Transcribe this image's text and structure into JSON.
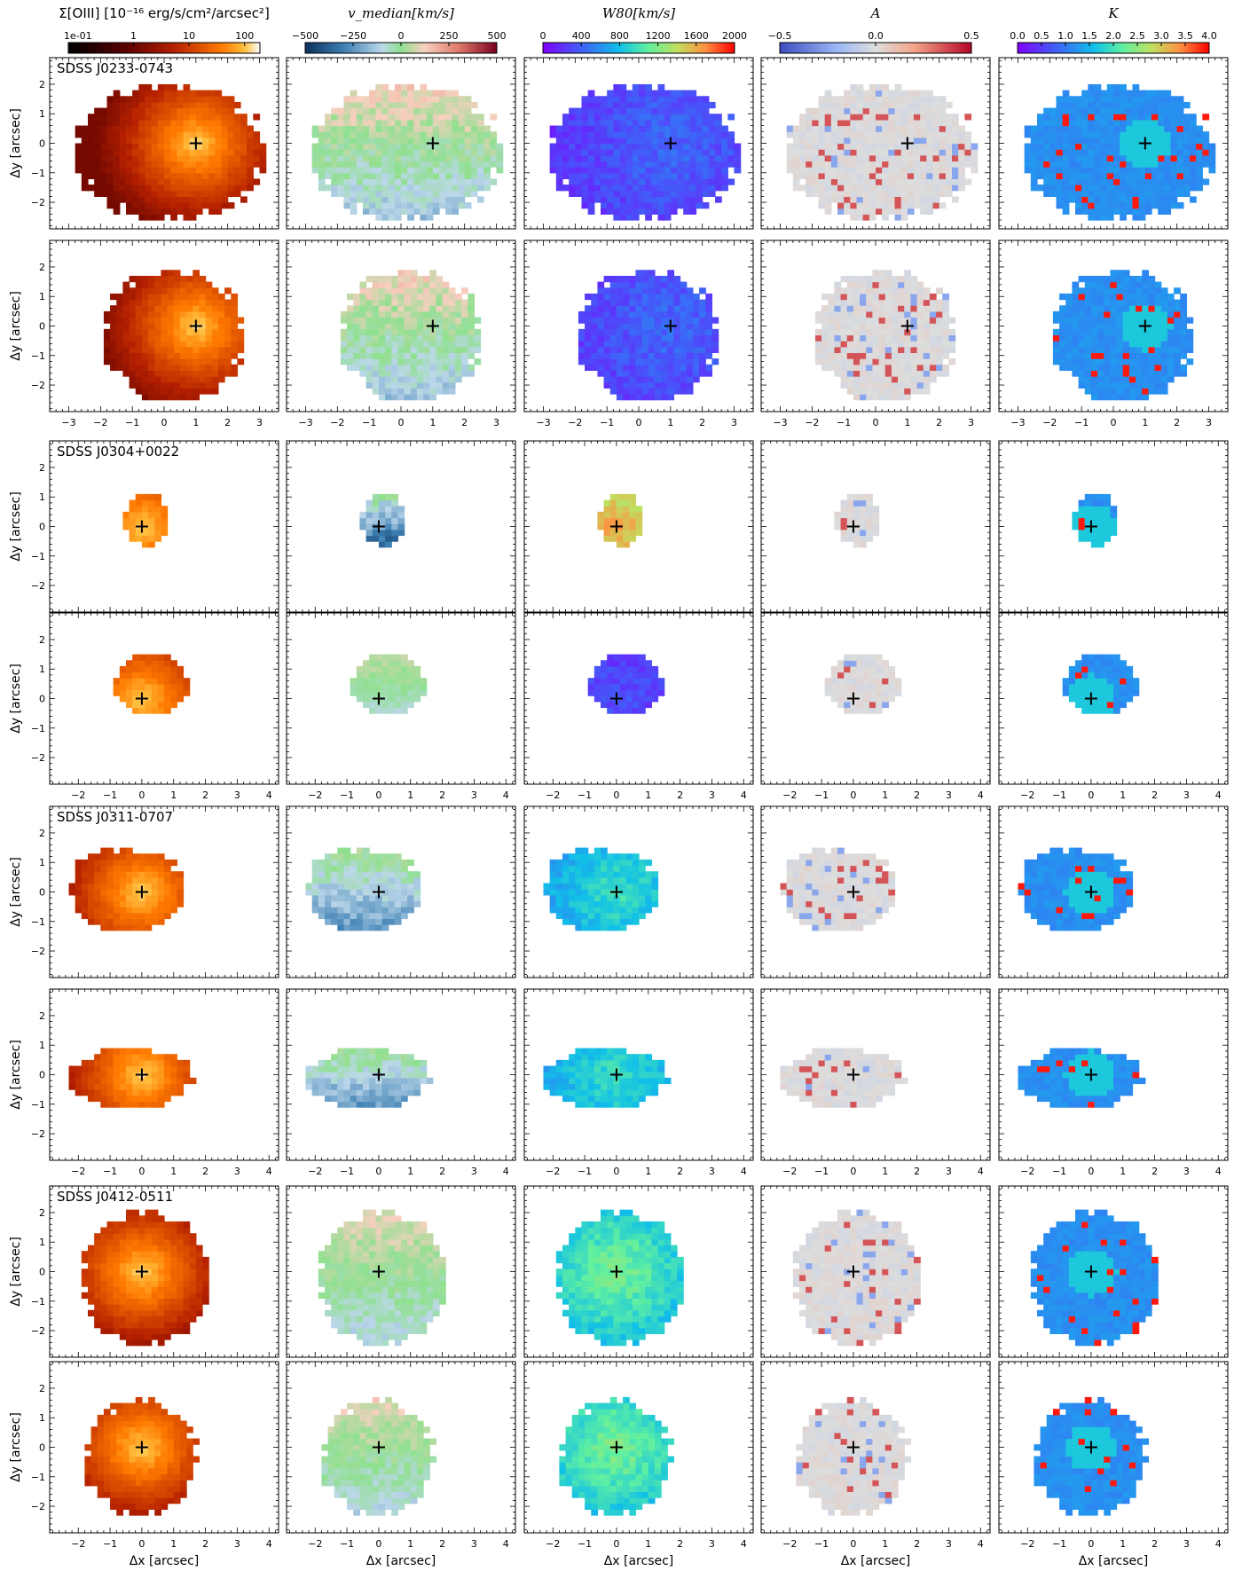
{
  "colorbars": [
    {
      "title": "Σ[OIII] [10⁻¹⁶ erg/s/cm²/arcsec²]",
      "ticks": [
        "1e-01",
        "1",
        "10",
        "100"
      ],
      "cmap": "gist_heat"
    },
    {
      "title": "v_median[km/s]",
      "ticks": [
        "−500",
        "−250",
        "0",
        "250",
        "500"
      ],
      "cmap": "coolwarm_green"
    },
    {
      "title": "W80[km/s]",
      "ticks": [
        "0",
        "400",
        "800",
        "1200",
        "1600",
        "2000"
      ],
      "cmap": "rainbow"
    },
    {
      "title": "A",
      "ticks": [
        "−0.5",
        "0.0",
        "0.5"
      ],
      "cmap": "coolwarm"
    },
    {
      "title": "K",
      "ticks": [
        "0.0",
        "0.5",
        "1.0",
        "1.5",
        "2.0",
        "2.5",
        "3.0",
        "3.5",
        "4.0"
      ],
      "cmap": "rainbow"
    }
  ],
  "panel_columns": [
    "Σ[OIII]",
    "v_median",
    "W80",
    "A",
    "K"
  ],
  "rows": [
    {
      "label": "SDSS J0233-0743",
      "xticks": [
        "−3",
        "−2",
        "−1",
        "0",
        "1",
        "2",
        "3"
      ],
      "xrange": [
        -3.6,
        3.6
      ]
    },
    {
      "label": "",
      "xticks": [
        "−3",
        "−2",
        "−1",
        "0",
        "1",
        "2",
        "3"
      ],
      "xrange": [
        -3.6,
        3.6
      ]
    },
    {
      "label": "SDSS J0304+0022",
      "xticks": [
        "−2",
        "−1",
        "0",
        "1",
        "2",
        "3",
        "4"
      ],
      "xrange": [
        -2.9,
        4.3
      ]
    },
    {
      "label": "",
      "xticks": [
        "−2",
        "−1",
        "0",
        "1",
        "2",
        "3",
        "4"
      ],
      "xrange": [
        -2.9,
        4.3
      ]
    },
    {
      "label": "SDSS J0311-0707",
      "xticks": [
        "−2",
        "−1",
        "0",
        "1",
        "2",
        "3",
        "4"
      ],
      "xrange": [
        -2.9,
        4.3
      ]
    },
    {
      "label": "",
      "xticks": [
        "−2",
        "−1",
        "0",
        "1",
        "2",
        "3",
        "4"
      ],
      "xrange": [
        -2.9,
        4.3
      ]
    },
    {
      "label": "SDSS J0412-0511",
      "xticks": [
        "−2",
        "−1",
        "0",
        "1",
        "2",
        "3",
        "4"
      ],
      "xrange": [
        -2.9,
        4.3
      ]
    },
    {
      "label": "",
      "xticks": [
        "−2",
        "−1",
        "0",
        "1",
        "2",
        "3",
        "4"
      ],
      "xrange": [
        -2.9,
        4.3
      ]
    }
  ],
  "yticks": [
    "−2",
    "−1",
    "0",
    "1",
    "2"
  ],
  "ylabel": "Δy [arcsec]",
  "xlabel": "Δx [arcsec]",
  "chart_data": {
    "type": "heatmap",
    "title": "",
    "xlabel": "Δx [arcsec]",
    "ylabel": "Δy [arcsec]",
    "ylim": [
      -2.9,
      2.9
    ],
    "maps": [
      "Σ[OIII]",
      "v_median",
      "W80",
      "A",
      "K"
    ],
    "objects": [
      "SDSS J0233-0743",
      "SDSS J0304+0022",
      "SDSS J0311-0707",
      "SDSS J0412-0511"
    ],
    "regions": [
      {
        "object": "SDSS J0233-0743",
        "row": 0,
        "center": [
          1.0,
          0.0
        ],
        "extent": {
          "x": [
            -2.8,
            3.1
          ],
          "y": [
            -2.6,
            2.0
          ]
        },
        "w80_typical": 400,
        "v_range": [
          -200,
          200
        ]
      },
      {
        "object": "SDSS J0233-0743",
        "row": 1,
        "center": [
          1.0,
          0.0
        ],
        "extent": {
          "x": [
            -1.9,
            2.5
          ],
          "y": [
            -2.5,
            1.9
          ]
        },
        "w80_typical": 400,
        "v_range": [
          -200,
          200
        ]
      },
      {
        "object": "SDSS J0304+0022",
        "row": 2,
        "center": [
          0.0,
          0.0
        ],
        "extent": {
          "x": [
            -0.6,
            0.8
          ],
          "y": [
            -0.7,
            1.1
          ]
        },
        "w80_typical": 1500,
        "v_range": [
          -450,
          100
        ]
      },
      {
        "object": "SDSS J0304+0022",
        "row": 3,
        "center": [
          0.0,
          0.0
        ],
        "extent": {
          "x": [
            -0.9,
            1.5
          ],
          "y": [
            -0.5,
            1.5
          ]
        },
        "w80_typical": 300,
        "v_range": [
          -100,
          100
        ]
      },
      {
        "object": "SDSS J0311-0707",
        "row": 4,
        "center": [
          0.0,
          0.0
        ],
        "extent": {
          "x": [
            -2.3,
            1.3
          ],
          "y": [
            -1.3,
            1.5
          ]
        },
        "w80_typical": 900,
        "v_range": [
          -300,
          100
        ]
      },
      {
        "object": "SDSS J0311-0707",
        "row": 5,
        "center": [
          0.0,
          0.0
        ],
        "extent": {
          "x": [
            -2.3,
            1.6
          ],
          "y": [
            -1.1,
            0.9
          ]
        },
        "w80_typical": 900,
        "v_range": [
          -300,
          100
        ]
      },
      {
        "object": "SDSS J0412-0511",
        "row": 6,
        "center": [
          0.0,
          0.0
        ],
        "extent": {
          "x": [
            -1.9,
            2.1
          ],
          "y": [
            -2.5,
            2.0
          ]
        },
        "w80_typical": 1100,
        "v_range": [
          -150,
          150
        ]
      },
      {
        "object": "SDSS J0412-0511",
        "row": 7,
        "center": [
          0.0,
          0.0
        ],
        "extent": {
          "x": [
            -1.8,
            1.7
          ],
          "y": [
            -2.3,
            1.6
          ]
        },
        "w80_typical": 1100,
        "v_range": [
          -150,
          150
        ]
      }
    ]
  }
}
